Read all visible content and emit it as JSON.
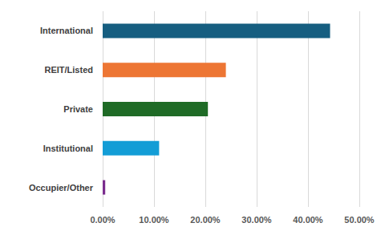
{
  "chart_data": {
    "type": "bar",
    "orientation": "horizontal",
    "categories": [
      "International",
      "REIT/Listed",
      "Private",
      "Institutional",
      "Occupier/Other"
    ],
    "values": [
      44.3,
      24.0,
      20.5,
      11.0,
      0.5
    ],
    "colors": [
      "#165e80",
      "#ed7634",
      "#1f6b26",
      "#139dd6",
      "#7b2d8e"
    ],
    "xlim": [
      0,
      50
    ],
    "xticks": [
      {
        "value": 0,
        "label": "0.00%"
      },
      {
        "value": 10,
        "label": "10.00%"
      },
      {
        "value": 20,
        "label": "20.00%"
      },
      {
        "value": 30,
        "label": "30.00%"
      },
      {
        "value": 40,
        "label": "40.00%"
      },
      {
        "value": 50,
        "label": "50.00%"
      }
    ],
    "grid": true
  }
}
